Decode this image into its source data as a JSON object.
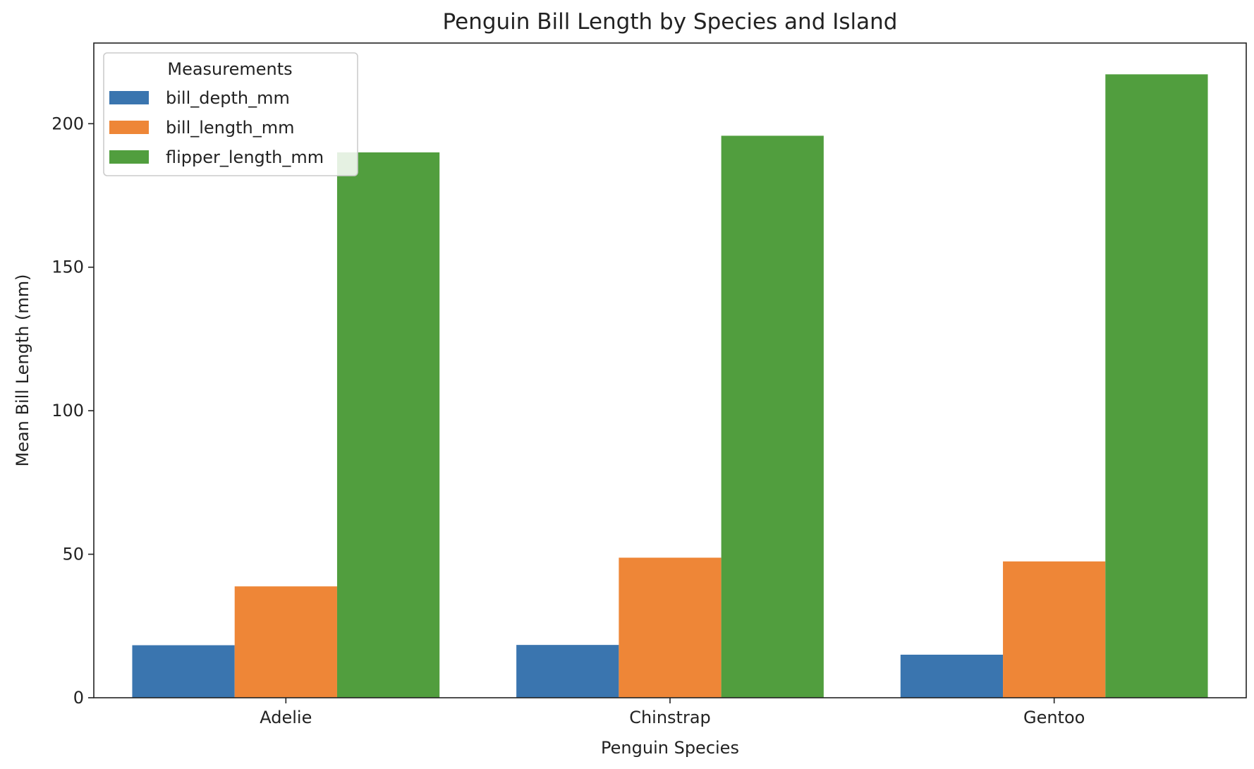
{
  "chart_data": {
    "type": "bar",
    "title": "Penguin Bill Length by Species and Island",
    "xlabel": "Penguin Species",
    "ylabel": "Mean Bill Length (mm)",
    "categories": [
      "Adelie",
      "Chinstrap",
      "Gentoo"
    ],
    "series": [
      {
        "name": "bill_depth_mm",
        "color": "#3a75af",
        "values": [
          18.3,
          18.4,
          15.0
        ]
      },
      {
        "name": "bill_length_mm",
        "color": "#ee8637",
        "values": [
          38.8,
          48.8,
          47.5
        ]
      },
      {
        "name": "flipper_length_mm",
        "color": "#519e3e",
        "values": [
          190.0,
          195.8,
          217.2
        ]
      }
    ],
    "ylim": [
      0,
      228.1
    ],
    "yticks": [
      0,
      50,
      100,
      150,
      200
    ],
    "ytick_labels": [
      "0",
      "50",
      "100",
      "150",
      "200"
    ],
    "grid": false,
    "legend": {
      "title": "Measurements",
      "placement": "top-left",
      "entries": [
        "bill_depth_mm",
        "bill_length_mm",
        "flipper_length_mm"
      ]
    }
  }
}
